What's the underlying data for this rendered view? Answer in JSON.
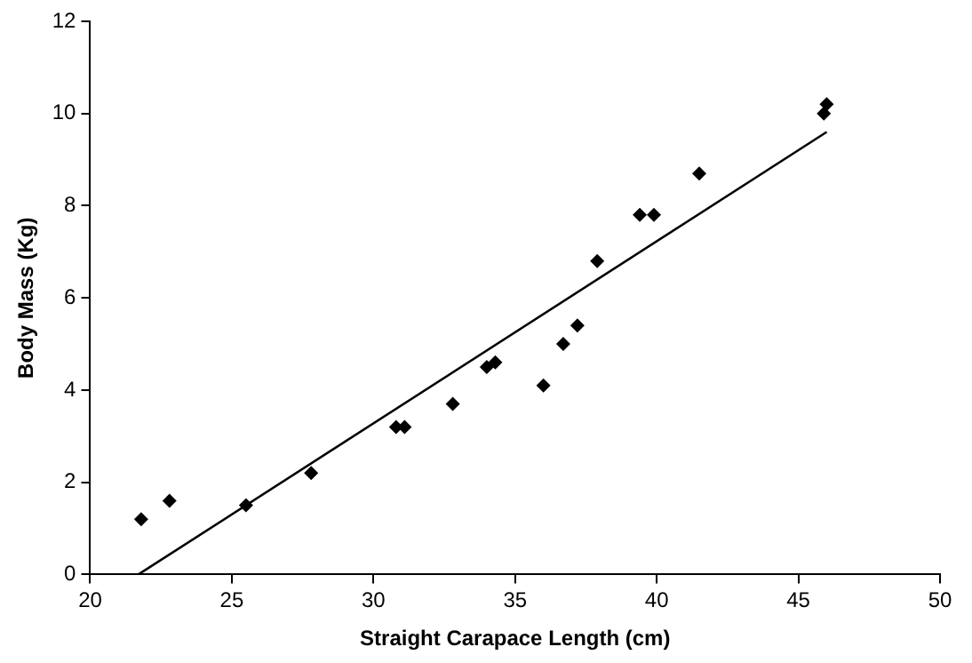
{
  "chart_data": {
    "type": "scatter",
    "xlabel": "Straight Carapace Length (cm)",
    "ylabel": "Body Mass (Kg)",
    "xlim": [
      20,
      50
    ],
    "xticks": [
      20,
      25,
      30,
      35,
      40,
      45,
      50
    ],
    "ylim": [
      0,
      12
    ],
    "yticks": [
      0,
      2,
      4,
      6,
      8,
      10,
      12
    ],
    "grid": false,
    "legend": false,
    "series": [
      {
        "marker": "diamond",
        "color": "#000000",
        "x": [
          21.8,
          22.8,
          25.5,
          27.8,
          30.8,
          31.1,
          32.8,
          34.0,
          34.3,
          36.0,
          36.7,
          37.2,
          37.9,
          39.4,
          39.9,
          41.5,
          45.9,
          46.0
        ],
        "values": [
          1.2,
          1.6,
          1.5,
          2.2,
          3.2,
          3.2,
          3.7,
          4.5,
          4.6,
          4.1,
          5.0,
          5.4,
          6.8,
          7.8,
          7.8,
          8.7,
          10.0,
          10.2
        ]
      },
      {
        "type": "line",
        "color": "#000000",
        "x": [
          21.7,
          46.0
        ],
        "values": [
          0,
          9.6
        ]
      }
    ]
  }
}
